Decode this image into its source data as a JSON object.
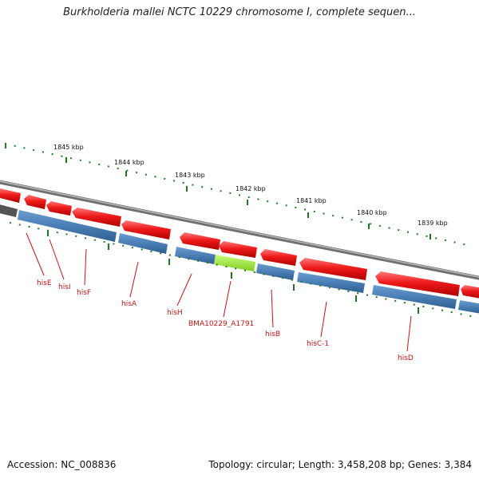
{
  "title": "Burkholderia mallei NCTC 10229 chromosome I, complete sequen...",
  "colors": {
    "backbone": "#8a8a8a",
    "forward_gene": "#e81515",
    "reverse_gene": "#4a7fb5",
    "highlight_gene": "#9ee53a",
    "tick": "#1f7a1f",
    "label": "#cc1111"
  },
  "scale_labels": [
    "1845 kbp",
    "1844 kbp",
    "1843 kbp",
    "1842 kbp",
    "1841 kbp",
    "1840 kbp",
    "1839 kbp"
  ],
  "gene_labels": [
    "hisE",
    "hisI",
    "hisF",
    "hisA",
    "hisH",
    "BMA10229_A1791",
    "hisB",
    "hisC-1",
    "hisD"
  ],
  "footer": {
    "accession": "Accession: NC_008836",
    "summary": "Topology: circular; Length: 3,458,208 bp; Genes: 3,384"
  }
}
